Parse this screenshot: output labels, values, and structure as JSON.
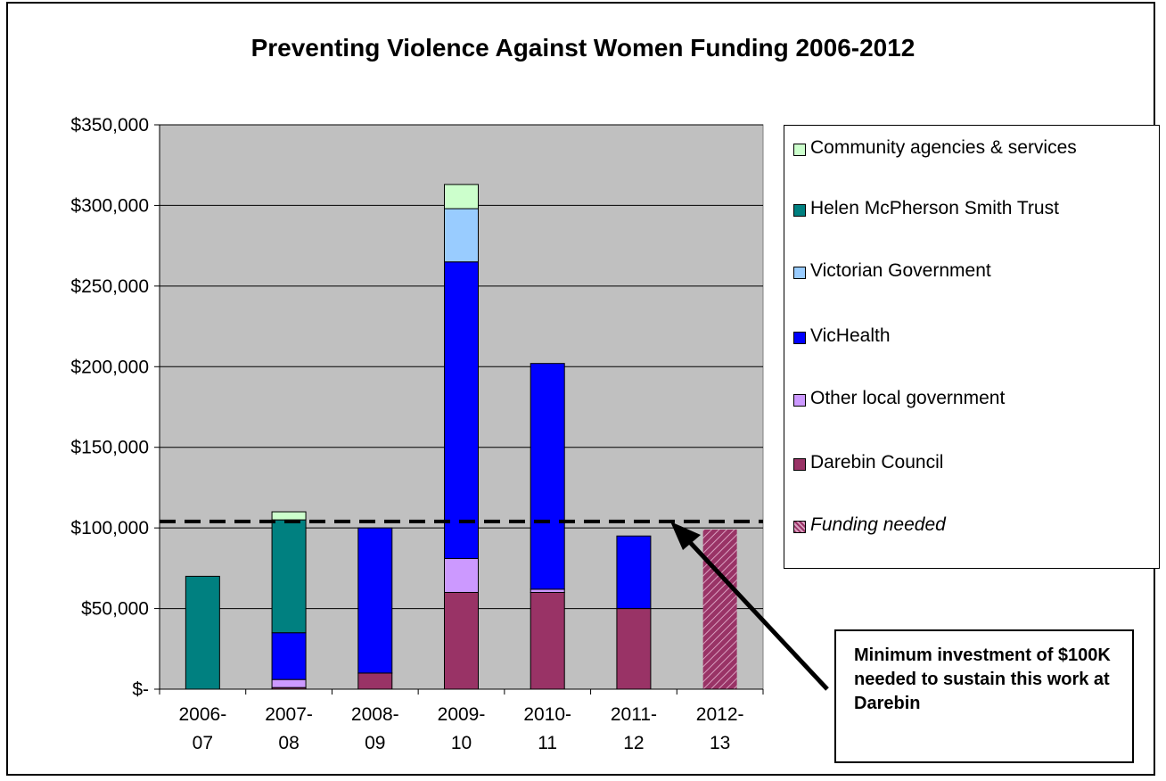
{
  "chart_data": {
    "type": "bar",
    "stacked": true,
    "title": "Preventing Violence Against Women Funding 2006-2012",
    "categories": [
      [
        "2006-",
        "07"
      ],
      [
        "2007-",
        "08"
      ],
      [
        "2008-",
        "09"
      ],
      [
        "2009-",
        "10"
      ],
      [
        "2010-",
        "11"
      ],
      [
        "2011-",
        "12"
      ],
      [
        "2012-",
        "13"
      ]
    ],
    "ylim": [
      0,
      350000
    ],
    "yticks": [
      0,
      50000,
      100000,
      150000,
      200000,
      250000,
      300000,
      350000
    ],
    "ytick_labels": [
      "$-",
      "$50,000",
      "$100,000",
      "$150,000",
      "$200,000",
      "$250,000",
      "$300,000",
      "$350,000"
    ],
    "grid": true,
    "legend_position": "right",
    "series": [
      {
        "name": "Darebin Council",
        "color": "#993366",
        "values": [
          0,
          1000,
          10000,
          60000,
          60000,
          50000,
          0
        ]
      },
      {
        "name": "Other local government",
        "color": "#CC99FF",
        "values": [
          0,
          5000,
          0,
          21000,
          2000,
          0,
          0
        ]
      },
      {
        "name": "VicHealth",
        "color": "#0000FF",
        "values": [
          0,
          29000,
          90000,
          184000,
          140000,
          45000,
          0
        ]
      },
      {
        "name": "Victorian Government",
        "color": "#99CCFF",
        "values": [
          0,
          0,
          0,
          33000,
          0,
          0,
          0
        ]
      },
      {
        "name": "Helen McPherson Smith Trust",
        "color": "#008080",
        "values": [
          70000,
          70000,
          0,
          0,
          0,
          0,
          0
        ]
      },
      {
        "name": "Community agencies & services",
        "color": "#CCFFCC",
        "values": [
          0,
          5000,
          0,
          15000,
          0,
          0,
          0
        ]
      },
      {
        "name": "Funding needed",
        "color": "#993366",
        "pattern": "hatched",
        "values": [
          0,
          0,
          0,
          0,
          0,
          0,
          99000
        ]
      }
    ],
    "reference_line": {
      "value": 104000,
      "style": "dashed"
    },
    "annotation": "Minimum investment of $100K needed to sustain this work at Darebin"
  },
  "legend": [
    {
      "label": "Community agencies & services",
      "color": "#CCFFCC"
    },
    {
      "label": "Helen McPherson Smith Trust",
      "color": "#008080"
    },
    {
      "label": "Victorian Government",
      "color": "#99CCFF"
    },
    {
      "label": "VicHealth",
      "color": "#0000FF"
    },
    {
      "label": "Other local government",
      "color": "#CC99FF"
    },
    {
      "label": "Darebin Council",
      "color": "#993366"
    },
    {
      "label": "Funding needed",
      "color": "#993366",
      "pattern": "hatched"
    }
  ],
  "colors": {
    "plot_background": "#C0C0C0"
  }
}
